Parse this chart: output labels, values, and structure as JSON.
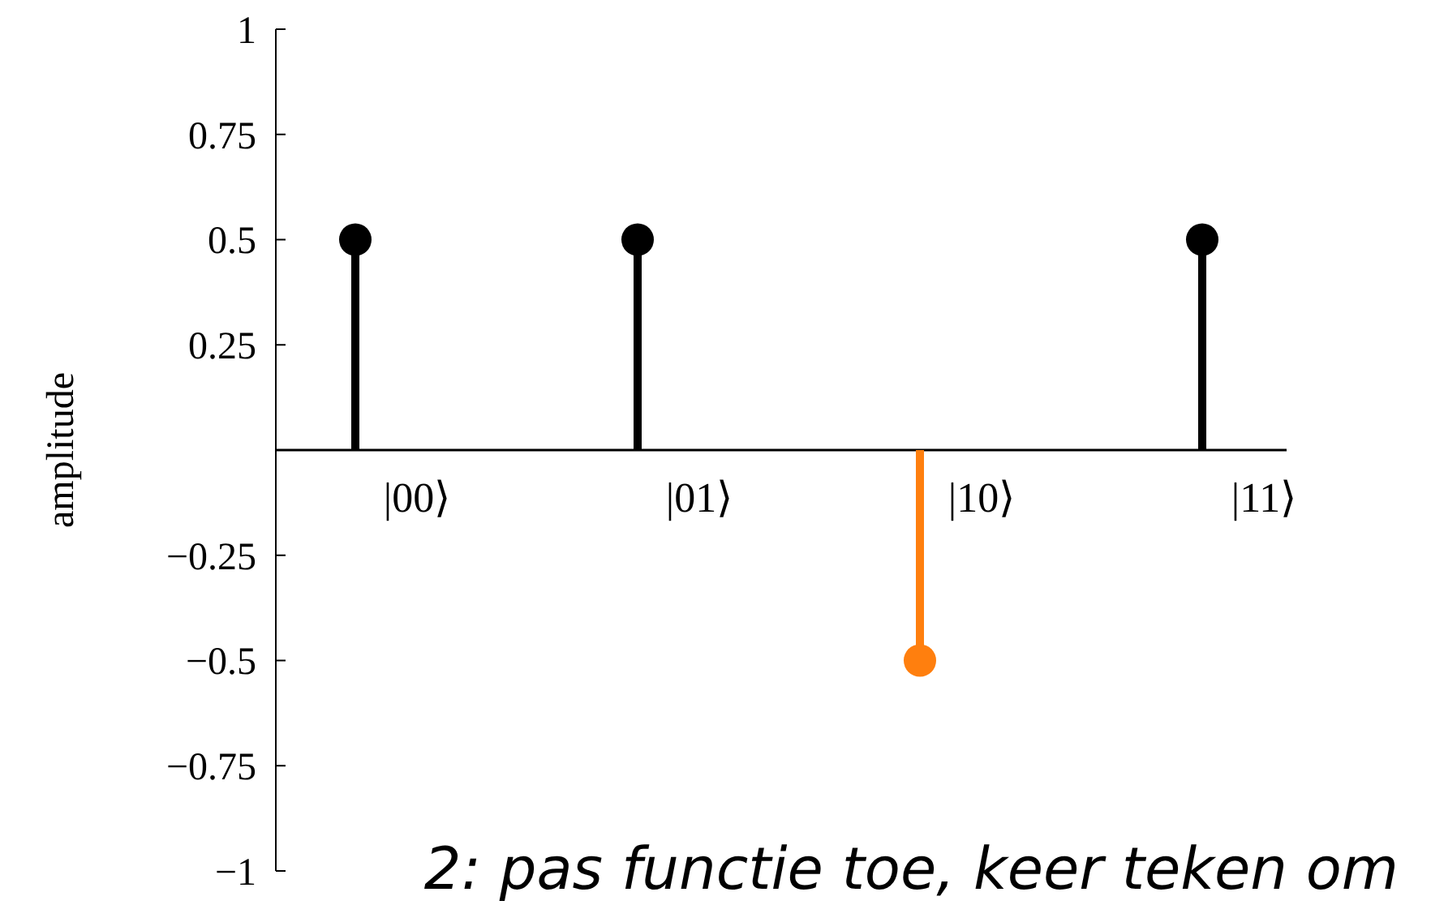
{
  "chart_data": {
    "type": "lollipop",
    "ylabel": "amplitude",
    "categories": [
      "|00⟩",
      "|01⟩",
      "|10⟩",
      "|11⟩"
    ],
    "values": [
      0.5,
      0.5,
      -0.5,
      0.5
    ],
    "colors": [
      "#000000",
      "#000000",
      "#ff7f0e",
      "#000000"
    ],
    "ylim": [
      -1,
      1
    ],
    "yticks": [
      {
        "value": -1,
        "label": "−1"
      },
      {
        "value": -0.75,
        "label": "−0.75"
      },
      {
        "value": -0.5,
        "label": "−0.5"
      },
      {
        "value": -0.25,
        "label": "−0.25"
      },
      0.25,
      0.5,
      0.75,
      1
    ],
    "marker": "circle",
    "annotations": [
      "2: pas functie toe, keer teken om"
    ]
  }
}
